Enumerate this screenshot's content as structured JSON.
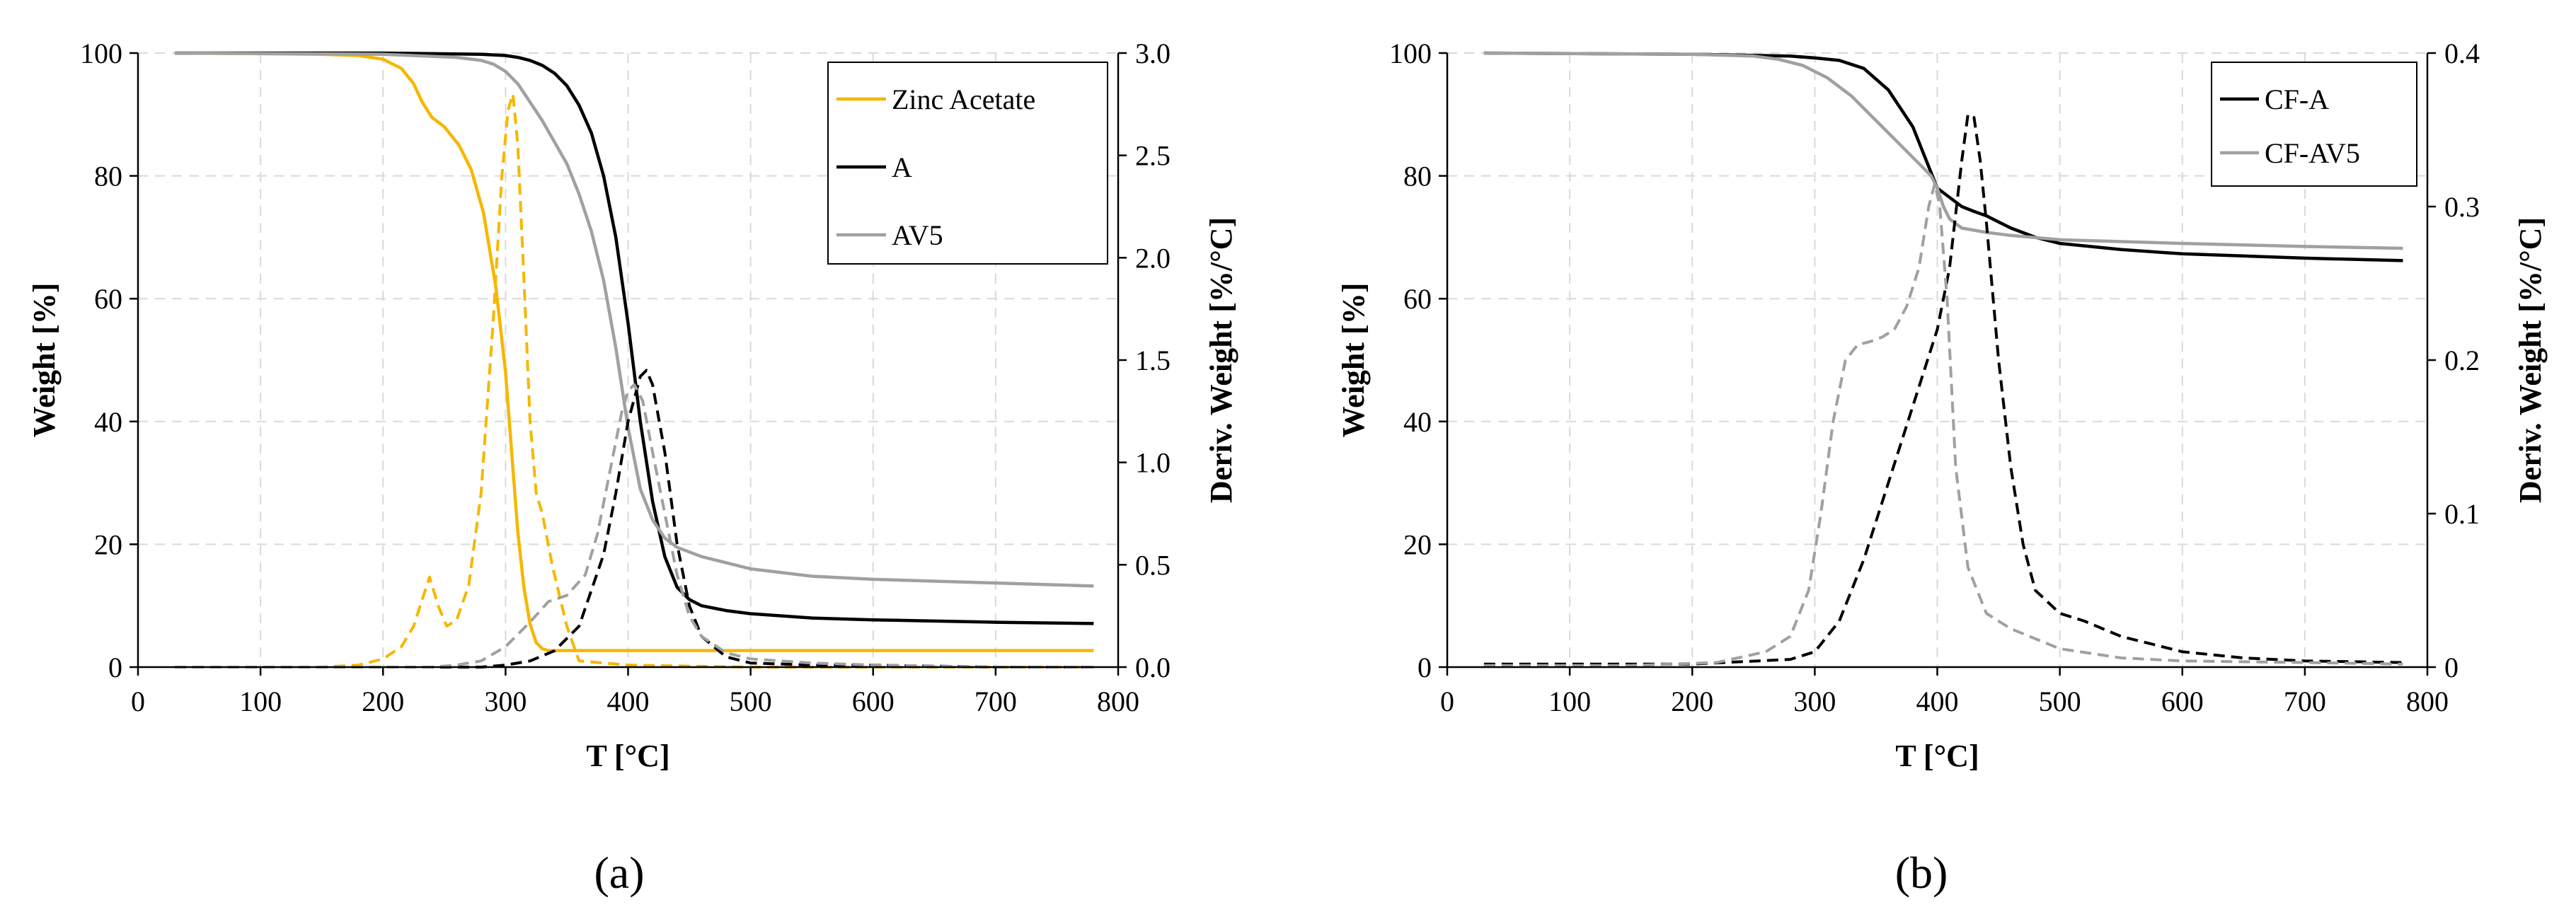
{
  "figure": {
    "captions": [
      "(a)",
      "(b)"
    ]
  },
  "chart_data": [
    {
      "type": "line",
      "panel_label": "(a)",
      "xlabel": "T [°C]",
      "ylabel": "Weight [%]",
      "y2label": "Deriv. Weight [%/°C]",
      "xlim": [
        0,
        800
      ],
      "ylim": [
        0,
        100
      ],
      "y2lim": [
        0,
        3.0
      ],
      "x_ticks": [
        0,
        100,
        200,
        300,
        400,
        500,
        600,
        700,
        800
      ],
      "y_ticks": [
        0,
        20,
        40,
        60,
        80,
        100
      ],
      "y2_ticks": [
        "0.0",
        "0.5",
        "1.0",
        "1.5",
        "2.0",
        "2.5",
        "3.0"
      ],
      "grid": true,
      "legend_position": "top-right",
      "series": [
        {
          "name": "Zinc Acetate",
          "axis": "left",
          "style": "solid",
          "color": "#F5B700",
          "legend": true,
          "x": [
            30,
            100,
            150,
            180,
            200,
            215,
            225,
            232,
            240,
            250,
            262,
            272,
            282,
            292,
            300,
            305,
            310,
            315,
            320,
            325,
            330,
            335,
            350,
            400,
            500,
            600,
            700,
            780
          ],
          "y": [
            100,
            99.9,
            99.8,
            99.6,
            99,
            97.5,
            95,
            92,
            89.5,
            88,
            85,
            81,
            74,
            62,
            48,
            35,
            22,
            13,
            7,
            4,
            3,
            2.7,
            2.7,
            2.7,
            2.7,
            2.7,
            2.7,
            2.7
          ]
        },
        {
          "name": "A",
          "axis": "left",
          "style": "solid",
          "color": "#000000",
          "legend": true,
          "x": [
            30,
            200,
            280,
            300,
            310,
            320,
            330,
            340,
            350,
            360,
            370,
            380,
            390,
            400,
            410,
            420,
            430,
            440,
            450,
            460,
            480,
            500,
            550,
            600,
            700,
            780
          ],
          "y": [
            100,
            100,
            99.8,
            99.6,
            99.3,
            98.8,
            98,
            96.7,
            94.7,
            91.5,
            87,
            80,
            70,
            56,
            40,
            27,
            18,
            13,
            11,
            10,
            9.2,
            8.7,
            8,
            7.7,
            7.3,
            7.1
          ]
        },
        {
          "name": "AV5",
          "axis": "left",
          "style": "solid",
          "color": "#A0A0A0",
          "legend": true,
          "x": [
            30,
            200,
            260,
            280,
            290,
            300,
            310,
            320,
            330,
            340,
            350,
            360,
            370,
            380,
            390,
            400,
            410,
            420,
            430,
            440,
            460,
            480,
            500,
            550,
            600,
            700,
            780
          ],
          "y": [
            100,
            99.8,
            99.3,
            98.8,
            98.2,
            97,
            95,
            92,
            89,
            85.5,
            82,
            77,
            71,
            63,
            52,
            39,
            29,
            24,
            21,
            19.5,
            18,
            17,
            16,
            14.8,
            14.3,
            13.7,
            13.2
          ]
        },
        {
          "name": "Zinc Acetate (derivative)",
          "axis": "right",
          "style": "dashed",
          "color": "#F5B700",
          "legend": false,
          "x": [
            30,
            150,
            180,
            200,
            215,
            225,
            232,
            238,
            245,
            252,
            260,
            270,
            280,
            290,
            297,
            302,
            306,
            310,
            315,
            320,
            325,
            330,
            338,
            350,
            360,
            400,
            500,
            600,
            700,
            780
          ],
          "y": [
            0,
            0,
            0.01,
            0.04,
            0.1,
            0.2,
            0.33,
            0.44,
            0.3,
            0.2,
            0.23,
            0.4,
            0.85,
            1.7,
            2.4,
            2.72,
            2.8,
            2.55,
            1.9,
            1.2,
            0.85,
            0.75,
            0.5,
            0.2,
            0.03,
            0.01,
            0,
            0,
            0,
            0
          ]
        },
        {
          "name": "A (derivative)",
          "axis": "right",
          "style": "dashed",
          "color": "#000000",
          "legend": false,
          "x": [
            30,
            280,
            300,
            320,
            340,
            360,
            380,
            390,
            400,
            410,
            415,
            420,
            430,
            440,
            450,
            460,
            480,
            500,
            550,
            600,
            700,
            780
          ],
          "y": [
            0,
            0,
            0.01,
            0.03,
            0.08,
            0.2,
            0.55,
            0.85,
            1.2,
            1.42,
            1.45,
            1.38,
            1.05,
            0.6,
            0.3,
            0.15,
            0.05,
            0.02,
            0.01,
            0.01,
            0,
            0
          ]
        },
        {
          "name": "AV5 (derivative)",
          "axis": "right",
          "style": "dashed",
          "color": "#A0A0A0",
          "legend": false,
          "x": [
            30,
            240,
            260,
            280,
            300,
            320,
            335,
            350,
            365,
            375,
            385,
            395,
            400,
            405,
            412,
            420,
            430,
            440,
            450,
            460,
            480,
            500,
            550,
            600,
            700,
            780
          ],
          "y": [
            0,
            0,
            0.01,
            0.03,
            0.1,
            0.22,
            0.32,
            0.35,
            0.45,
            0.65,
            0.95,
            1.25,
            1.35,
            1.38,
            1.3,
            1.05,
            0.75,
            0.45,
            0.25,
            0.15,
            0.07,
            0.04,
            0.02,
            0.01,
            0,
            0
          ]
        }
      ]
    },
    {
      "type": "line",
      "panel_label": "(b)",
      "xlabel": "T [°C]",
      "ylabel": "Weight [%]",
      "y2label": "Deriv. Weight [%/°C]",
      "xlim": [
        0,
        800
      ],
      "ylim": [
        0,
        100
      ],
      "y2lim": [
        0,
        0.4
      ],
      "x_ticks": [
        0,
        100,
        200,
        300,
        400,
        500,
        600,
        700,
        800
      ],
      "y_ticks": [
        0,
        20,
        40,
        60,
        80,
        100
      ],
      "y2_ticks": [
        "0",
        "0.1",
        "0.2",
        "0.3",
        "0.4"
      ],
      "grid": true,
      "legend_position": "top-right",
      "series": [
        {
          "name": "CF-A",
          "axis": "left",
          "style": "solid",
          "color": "#000000",
          "legend": true,
          "x": [
            30,
            200,
            280,
            300,
            320,
            340,
            360,
            380,
            400,
            420,
            430,
            440,
            450,
            460,
            480,
            500,
            550,
            600,
            700,
            780
          ],
          "y": [
            100,
            99.8,
            99.5,
            99.2,
            98.8,
            97.5,
            94,
            88,
            78,
            75,
            74.2,
            73.5,
            72.5,
            71.5,
            70,
            69,
            68,
            67.3,
            66.6,
            66.2
          ]
        },
        {
          "name": "CF-AV5",
          "axis": "left",
          "style": "solid",
          "color": "#A0A0A0",
          "legend": true,
          "x": [
            30,
            200,
            250,
            270,
            290,
            310,
            330,
            350,
            370,
            385,
            395,
            400,
            405,
            410,
            420,
            440,
            460,
            500,
            600,
            700,
            780
          ],
          "y": [
            100,
            99.8,
            99.5,
            99,
            98,
            96,
            93,
            89,
            85,
            82,
            80,
            78,
            75,
            73,
            71.5,
            70.8,
            70.3,
            69.6,
            69,
            68.5,
            68.2
          ]
        },
        {
          "name": "CF-A (derivative)",
          "axis": "right",
          "style": "dashed",
          "color": "#000000",
          "legend": false,
          "x": [
            30,
            100,
            200,
            280,
            300,
            320,
            340,
            360,
            380,
            400,
            410,
            420,
            425,
            430,
            435,
            440,
            450,
            460,
            470,
            480,
            500,
            520,
            550,
            600,
            650,
            700,
            780
          ],
          "y": [
            0.002,
            0.002,
            0.002,
            0.005,
            0.01,
            0.03,
            0.07,
            0.12,
            0.17,
            0.22,
            0.26,
            0.33,
            0.36,
            0.358,
            0.33,
            0.29,
            0.2,
            0.13,
            0.08,
            0.05,
            0.035,
            0.03,
            0.02,
            0.01,
            0.006,
            0.004,
            0.003
          ]
        },
        {
          "name": "CF-AV5 (derivative)",
          "axis": "right",
          "style": "dashed",
          "color": "#A0A0A0",
          "legend": false,
          "x": [
            30,
            150,
            220,
            260,
            280,
            295,
            305,
            315,
            325,
            335,
            345,
            355,
            365,
            375,
            385,
            393,
            398,
            402,
            408,
            415,
            425,
            440,
            460,
            500,
            550,
            600,
            700,
            780
          ],
          "y": [
            0.001,
            0.001,
            0.003,
            0.01,
            0.02,
            0.05,
            0.1,
            0.16,
            0.2,
            0.21,
            0.212,
            0.215,
            0.22,
            0.235,
            0.26,
            0.3,
            0.315,
            0.3,
            0.24,
            0.13,
            0.065,
            0.035,
            0.025,
            0.012,
            0.006,
            0.004,
            0.003,
            0.002
          ]
        }
      ]
    }
  ]
}
